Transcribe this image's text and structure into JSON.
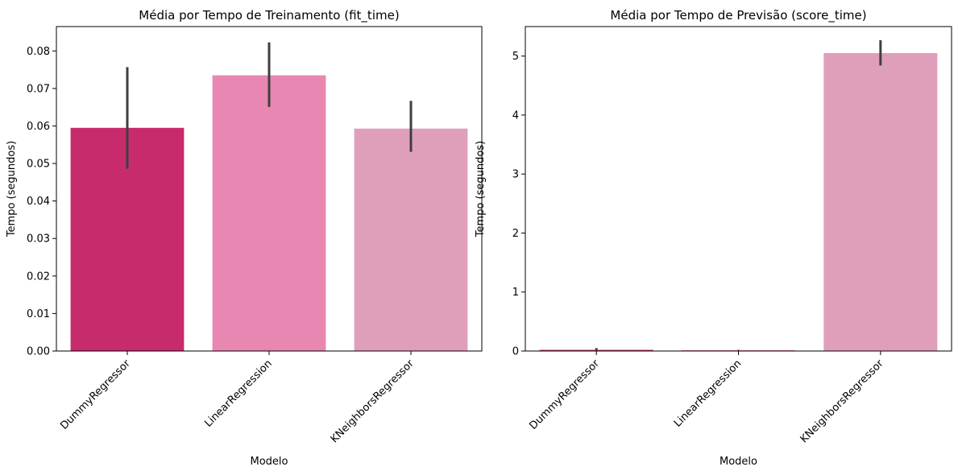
{
  "chart_data": [
    {
      "type": "bar",
      "title": "Média por Tempo de Treinamento (fit_time)",
      "xlabel": "Modelo",
      "ylabel": "Tempo (segundos)",
      "categories": [
        "DummyRegressor",
        "LinearRegression",
        "KNeighborsRegressor"
      ],
      "values": [
        0.0595,
        0.0735,
        0.0593
      ],
      "error_low": [
        0.0486,
        0.0651,
        0.0531
      ],
      "error_high": [
        0.0757,
        0.0823,
        0.0667
      ],
      "colors": [
        "#c72b6b",
        "#e887b1",
        "#df9fbb"
      ],
      "ylim": [
        0,
        0.0865
      ],
      "yticks": [
        "0.00",
        "0.01",
        "0.02",
        "0.03",
        "0.04",
        "0.05",
        "0.06",
        "0.07",
        "0.08"
      ],
      "ytick_values": [
        0,
        0.01,
        0.02,
        0.03,
        0.04,
        0.05,
        0.06,
        0.07,
        0.08
      ],
      "grid": false
    },
    {
      "type": "bar",
      "title": "Média por Tempo de Previsão (score_time)",
      "xlabel": "Modelo",
      "ylabel": "Tempo (segundos)",
      "categories": [
        "DummyRegressor",
        "LinearRegression",
        "KNeighborsRegressor"
      ],
      "values": [
        0.02,
        0.015,
        5.05
      ],
      "error_low": [
        0.01,
        0.012,
        4.84
      ],
      "error_high": [
        0.05,
        0.02,
        5.27
      ],
      "colors": [
        "#c72b6b",
        "#e887b1",
        "#df9fbb"
      ],
      "ylim": [
        0,
        5.5
      ],
      "yticks": [
        "0",
        "1",
        "2",
        "3",
        "4",
        "5"
      ],
      "ytick_values": [
        0,
        1,
        2,
        3,
        4,
        5
      ],
      "grid": false
    }
  ]
}
